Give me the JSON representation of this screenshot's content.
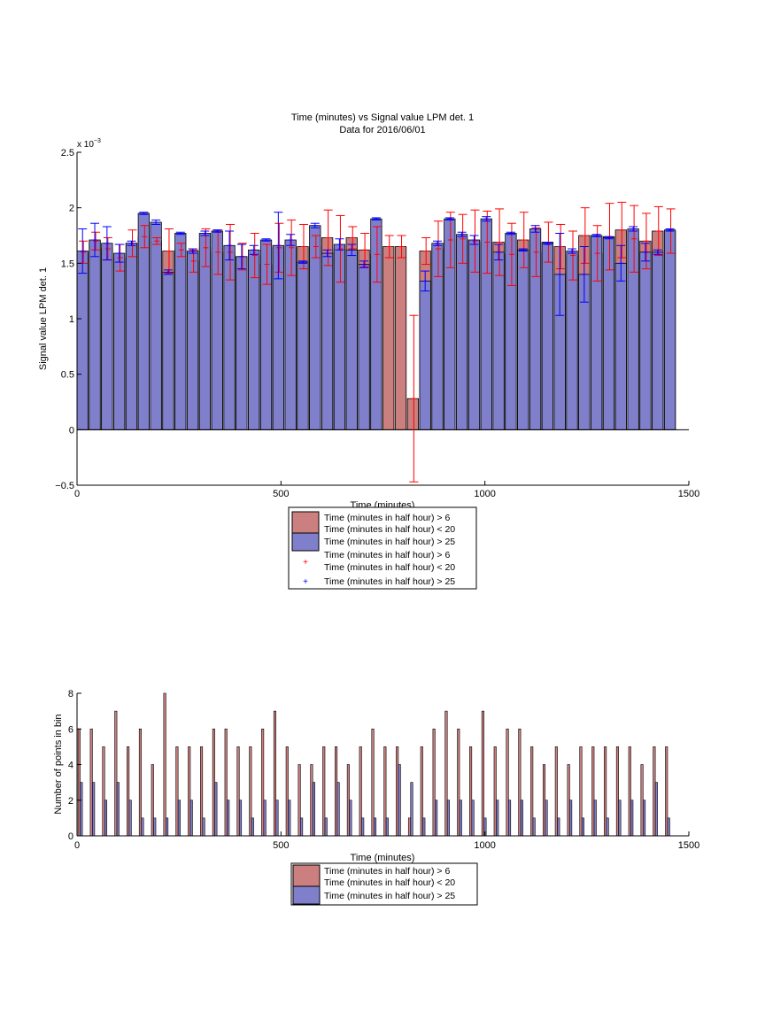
{
  "chart_data": [
    {
      "type": "bar",
      "title": "Time (minutes) vs Signal value LPM det. 1",
      "subtitle": "Data for 2016/06/01",
      "xlabel": "Time (minutes)",
      "ylabel": "Signal value LPM det. 1",
      "y_exponent_label": "x 10^-3",
      "y_multiplier": 0.001,
      "xlim": [
        0,
        1500
      ],
      "ylim": [
        -0.5,
        2.5
      ],
      "xticks": [
        0,
        500,
        1000,
        1500
      ],
      "yticks": [
        -0.5,
        0,
        0.5,
        1,
        1.5,
        2,
        2.5
      ],
      "legend": [
        {
          "label": "Time (minutes in half hour) > 6\nTime (minutes in half hour) < 20",
          "color": "#cc7f7f",
          "kind": "bar"
        },
        {
          "label": "Time (minutes in half hour) > 25",
          "color": "#7f7fcc",
          "kind": "bar"
        },
        {
          "label": "Time (minutes in half hour) > 6\nTime (minutes in half hour) < 20",
          "color": "#ff0000",
          "kind": "marker"
        },
        {
          "label": "Time (minutes in half hour) > 25",
          "color": "#0000ff",
          "kind": "marker"
        }
      ],
      "x": [
        0,
        30,
        60,
        90,
        120,
        150,
        180,
        210,
        240,
        270,
        300,
        330,
        360,
        390,
        420,
        450,
        480,
        510,
        540,
        570,
        600,
        630,
        660,
        690,
        720,
        750,
        780,
        810,
        840,
        870,
        900,
        930,
        960,
        990,
        1020,
        1050,
        1080,
        1110,
        1140,
        1170,
        1200,
        1230,
        1260,
        1290,
        1320,
        1350,
        1380,
        1410,
        1440
      ],
      "series": [
        {
          "name": "Time (minutes in half hour) > 6\nTime (minutes in half hour) < 20",
          "color": "#cc7f7f",
          "values": [
            1.6,
            1.7,
            1.63,
            1.55,
            1.68,
            1.74,
            1.7,
            1.61,
            1.62,
            1.52,
            1.64,
            1.6,
            1.6,
            1.56,
            1.57,
            1.49,
            1.64,
            1.64,
            1.65,
            1.65,
            1.73,
            1.63,
            1.73,
            1.62,
            1.58,
            1.65,
            1.65,
            0.28,
            1.61,
            1.63,
            1.71,
            1.72,
            1.7,
            1.69,
            1.69,
            1.58,
            1.71,
            1.6,
            1.69,
            1.65,
            1.57,
            1.75,
            1.59,
            1.74,
            1.8,
            1.72,
            1.7,
            1.79,
            1.79
          ],
          "err": [
            0.1,
            0.08,
            0.1,
            0.12,
            0.12,
            0.1,
            0.03,
            0.2,
            0.06,
            0.1,
            0.17,
            0.2,
            0.25,
            0.12,
            0.2,
            0.18,
            0.22,
            0.25,
            0.2,
            0.1,
            0.25,
            0.3,
            0.1,
            0.15,
            0.25,
            0.1,
            0.1,
            0.75,
            0.12,
            0.25,
            0.25,
            0.22,
            0.28,
            0.28,
            0.3,
            0.28,
            0.25,
            0.22,
            0.18,
            0.2,
            0.22,
            0.25,
            0.25,
            0.3,
            0.25,
            0.3,
            0.25,
            0.22,
            0.2
          ]
        },
        {
          "name": "Time (minutes in half hour) > 25",
          "color": "#7f7fcc",
          "values": [
            1.61,
            1.71,
            1.68,
            1.59,
            1.68,
            1.95,
            1.87,
            1.42,
            1.77,
            1.61,
            1.77,
            1.79,
            1.66,
            1.56,
            1.62,
            1.71,
            1.66,
            1.71,
            1.51,
            1.84,
            1.59,
            1.67,
            1.62,
            1.49,
            1.9,
            null,
            null,
            null,
            1.34,
            1.68,
            1.9,
            1.76,
            1.71,
            1.9,
            1.6,
            1.77,
            1.62,
            1.81,
            1.68,
            1.4,
            1.61,
            1.4,
            1.75,
            1.73,
            1.5,
            1.81,
            1.6,
            1.6,
            1.8
          ],
          "err": [
            0.2,
            0.15,
            0.15,
            0.08,
            0.02,
            0.01,
            0.02,
            0.02,
            0.01,
            0.02,
            0.02,
            0.01,
            0.13,
            0.11,
            0.04,
            0.01,
            0.3,
            0.05,
            0.01,
            0.02,
            0.03,
            0.05,
            0.05,
            0.03,
            0.01,
            null,
            null,
            null,
            0.09,
            0.02,
            0.01,
            0.02,
            0.04,
            0.02,
            0.07,
            0.01,
            0.01,
            0.03,
            0.01,
            0.37,
            0.02,
            0.25,
            0.01,
            0.01,
            0.16,
            0.02,
            0.08,
            0.02,
            0.01
          ]
        }
      ]
    },
    {
      "type": "bar",
      "title": "",
      "xlabel": "Time (minutes)",
      "ylabel": "Number of points in bin",
      "xlim": [
        0,
        1500
      ],
      "ylim": [
        0,
        8
      ],
      "xticks": [
        0,
        500,
        1000,
        1500
      ],
      "yticks": [
        0,
        2,
        4,
        6,
        8
      ],
      "legend": [
        {
          "label": "Time (minutes in half hour) > 6\nTime (minutes in half hour) < 20",
          "color": "#cc7f7f",
          "kind": "bar"
        },
        {
          "label": "Time (minutes in half hour) > 25",
          "color": "#7f7fcc",
          "kind": "bar"
        }
      ],
      "x": [
        0,
        30,
        60,
        90,
        120,
        150,
        180,
        210,
        240,
        270,
        300,
        330,
        360,
        390,
        420,
        450,
        480,
        510,
        540,
        570,
        600,
        630,
        660,
        690,
        720,
        750,
        780,
        810,
        840,
        870,
        900,
        930,
        960,
        990,
        1020,
        1050,
        1080,
        1110,
        1140,
        1170,
        1200,
        1230,
        1260,
        1290,
        1320,
        1350,
        1380,
        1410,
        1440
      ],
      "series": [
        {
          "name": "Time (minutes in half hour) > 6\nTime (minutes in half hour) < 20",
          "color": "#cc7f7f",
          "values": [
            6,
            6,
            5,
            7,
            5,
            6,
            4,
            8,
            5,
            5,
            5,
            6,
            6,
            5,
            5,
            6,
            7,
            5,
            4,
            4,
            5,
            5,
            4,
            5,
            6,
            5,
            5,
            1,
            5,
            6,
            7,
            6,
            5,
            7,
            5,
            6,
            6,
            5,
            4,
            5,
            4,
            5,
            5,
            5,
            5,
            5,
            4,
            5,
            5
          ]
        },
        {
          "name": "Time (minutes in half hour) > 25",
          "color": "#7f7fcc",
          "values": [
            3,
            3,
            2,
            3,
            2,
            1,
            1,
            1,
            2,
            2,
            1,
            3,
            2,
            2,
            1,
            2,
            2,
            2,
            1,
            3,
            1,
            3,
            2,
            1,
            1,
            1,
            4,
            3,
            1,
            2,
            2,
            2,
            2,
            1,
            2,
            2,
            2,
            1,
            2,
            1,
            2,
            1,
            2,
            1,
            2,
            2,
            2,
            3,
            1
          ]
        }
      ]
    }
  ]
}
